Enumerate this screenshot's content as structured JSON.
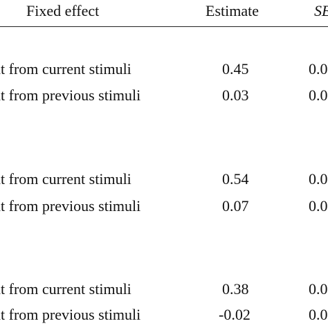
{
  "table": {
    "headers": {
      "effect": "Fixed effect",
      "estimate": "Estimate",
      "se": "SE"
    },
    "groups": [
      {
        "rows": [
          {
            "label": "ut from current stimuli",
            "estimate": "0.45",
            "se": "0.0"
          },
          {
            "label": "ut from previous stimuli",
            "estimate": "0.03",
            "se": "0.0"
          }
        ]
      },
      {
        "rows": [
          {
            "label": "ut from current stimuli",
            "estimate": "0.54",
            "se": "0.0"
          },
          {
            "label": "ut from previous stimuli",
            "estimate": "0.07",
            "se": "0.0"
          }
        ]
      },
      {
        "rows": [
          {
            "label": "ut from current stimuli",
            "estimate": "0.38",
            "se": "0.0"
          },
          {
            "label": "ut from previous stimuli",
            "estimate": "-0.02",
            "se": "0.0"
          }
        ]
      }
    ]
  }
}
